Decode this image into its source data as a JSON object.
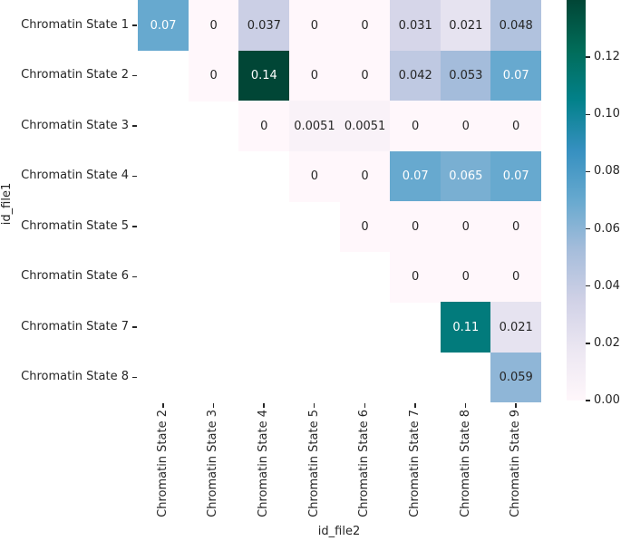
{
  "figure": {
    "background": "#ffffff",
    "text_color": "#262626"
  },
  "chart_data": {
    "type": "heatmap",
    "title": "",
    "xlabel": "id_file2",
    "ylabel": "id_file1",
    "x_categories": [
      "Chromatin State 2",
      "Chromatin State 3",
      "Chromatin State 4",
      "Chromatin State 5",
      "Chromatin State 6",
      "Chromatin State 7",
      "Chromatin State 8",
      "Chromatin State 9"
    ],
    "y_categories": [
      "Chromatin State 1",
      "Chromatin State 2",
      "Chromatin State 3",
      "Chromatin State 4",
      "Chromatin State 5",
      "Chromatin State 6",
      "Chromatin State 7",
      "Chromatin State 8"
    ],
    "mask": "lower-triangle",
    "values": [
      [
        0.07,
        0,
        0.037,
        0,
        0,
        0.031,
        0.021,
        0.048
      ],
      [
        null,
        0,
        0.14,
        0,
        0,
        0.042,
        0.053,
        0.07
      ],
      [
        null,
        null,
        0,
        0.0051,
        0.0051,
        0,
        0,
        0
      ],
      [
        null,
        null,
        null,
        0,
        0,
        0.07,
        0.065,
        0.07
      ],
      [
        null,
        null,
        null,
        null,
        0,
        0,
        0,
        0
      ],
      [
        null,
        null,
        null,
        null,
        null,
        0,
        0,
        0
      ],
      [
        null,
        null,
        null,
        null,
        null,
        null,
        0.11,
        0.021
      ],
      [
        null,
        null,
        null,
        null,
        null,
        null,
        null,
        0.059
      ]
    ],
    "labels": [
      [
        "0.07",
        "0",
        "0.037",
        "0",
        "0",
        "0.031",
        "0.021",
        "0.048"
      ],
      [
        null,
        "0",
        "0.14",
        "0",
        "0",
        "0.042",
        "0.053",
        "0.07"
      ],
      [
        null,
        null,
        "0",
        "0.0051",
        "0.0051",
        "0",
        "0",
        "0"
      ],
      [
        null,
        null,
        null,
        "0",
        "0",
        "0.07",
        "0.065",
        "0.07"
      ],
      [
        null,
        null,
        null,
        null,
        "0",
        "0",
        "0",
        "0"
      ],
      [
        null,
        null,
        null,
        null,
        null,
        "0",
        "0",
        "0"
      ],
      [
        null,
        null,
        null,
        null,
        null,
        null,
        "0.11",
        "0.021"
      ],
      [
        null,
        null,
        null,
        null,
        null,
        null,
        null,
        "0.059"
      ]
    ],
    "vmin": 0,
    "vmax": 0.14,
    "colormap": {
      "name": "PuBuGn",
      "stops": [
        "#fff7fb",
        "#ece7f2",
        "#d0d1e6",
        "#a6bddb",
        "#67a9cf",
        "#3690c0",
        "#02818a",
        "#016c59",
        "#014636"
      ]
    },
    "annotation_colors": {
      "dark": "#262626",
      "light": "#ffffff"
    },
    "colorbar": {
      "position": "right",
      "ticks": [
        {
          "label": "0.12",
          "value": 0.12
        },
        {
          "label": "0.10",
          "value": 0.1
        },
        {
          "label": "0.08",
          "value": 0.08
        },
        {
          "label": "0.06",
          "value": 0.06
        },
        {
          "label": "0.04",
          "value": 0.04
        },
        {
          "label": "0.02",
          "value": 0.02
        },
        {
          "label": "0.00",
          "value": 0.0
        }
      ]
    },
    "grid": false,
    "legend": false
  }
}
